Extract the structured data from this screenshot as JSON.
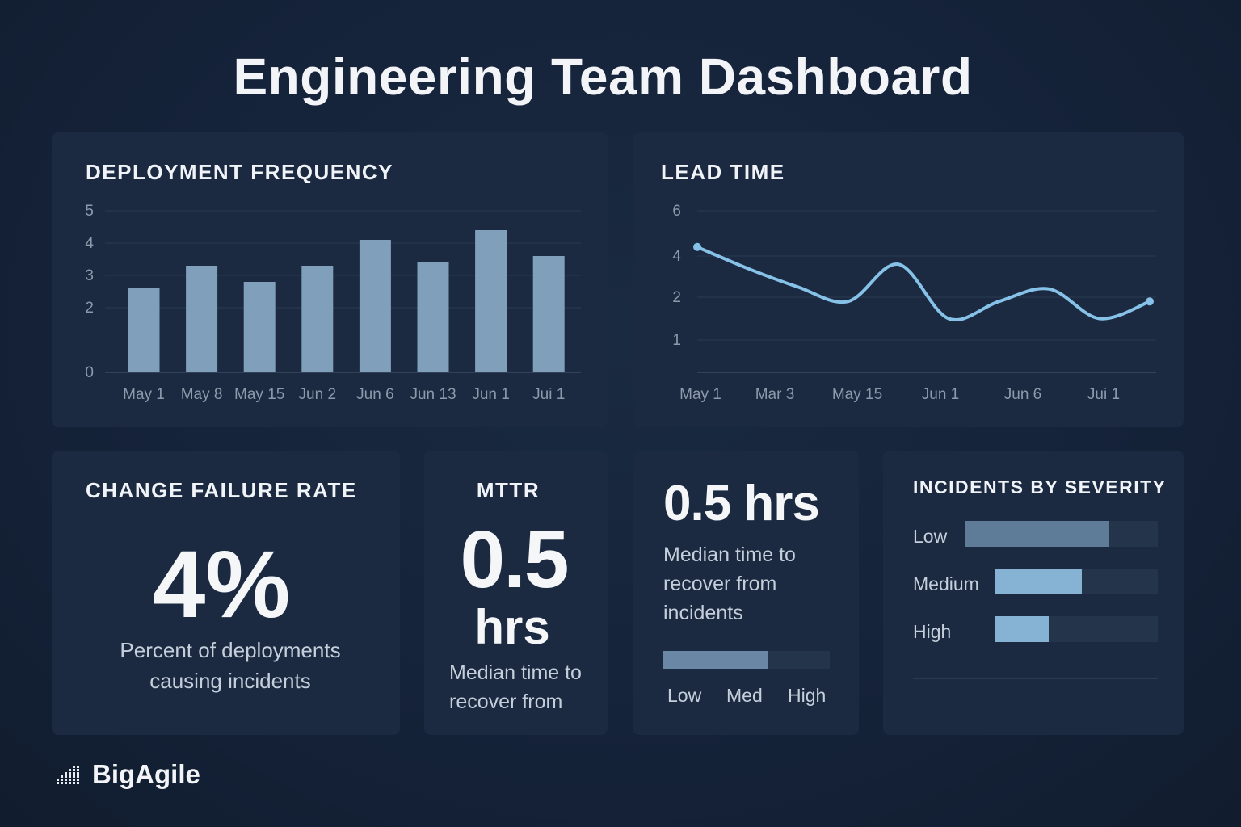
{
  "page": {
    "title": "Engineering Team Dashboard"
  },
  "colors": {
    "background": "#15233a",
    "card": "#1b2a40",
    "bar": "#7f9fba",
    "line": "#86c1e8",
    "severity_low": "#5e7b98",
    "severity_medium": "#86b2d4",
    "severity_high": "#86b2d4",
    "track": "#24344b"
  },
  "deployment_frequency": {
    "title": "DEPLOYMENT FREQUENCY"
  },
  "lead_time": {
    "title": "LEAD TIME"
  },
  "change_failure_rate": {
    "title": "CHANGE FAILURE RATE",
    "value": "4%",
    "desc_line1": "Percent of deployments",
    "desc_line2": "causing incidents"
  },
  "mttr": {
    "title": "MTTR",
    "value": "0.5",
    "unit": "hrs",
    "desc_line1": "Median time to",
    "desc_line2": "recover from"
  },
  "recovery": {
    "value": "0.5 hrs",
    "desc_line1": "Median time to",
    "desc_line2": "recover from",
    "desc_line3": "incidents",
    "scale_low": "Low",
    "scale_med": "Med",
    "scale_high": "High",
    "level": 0.63
  },
  "incidents": {
    "title": "INCIDENTS BY SEVERITY",
    "items": [
      {
        "label": "Low",
        "fraction": 0.75
      },
      {
        "label": "Medium",
        "fraction": 0.53
      },
      {
        "label": "High",
        "fraction": 0.33
      }
    ]
  },
  "brand": {
    "name": "BigAgile"
  },
  "chart_data": [
    {
      "type": "bar",
      "title": "DEPLOYMENT FREQUENCY",
      "categories": [
        "May 1",
        "May 8",
        "May 15",
        "Jun 2",
        "Jun 6",
        "Jun 13",
        "Jun 1",
        "Jui 1"
      ],
      "values": [
        2.6,
        3.3,
        2.8,
        3.3,
        4.1,
        3.4,
        4.4,
        3.6
      ],
      "yticks": [
        0,
        2,
        3,
        4,
        5
      ],
      "ylim": [
        0,
        5
      ],
      "grid": true
    },
    {
      "type": "line",
      "title": "LEAD TIME",
      "xticks": [
        "May 1",
        "Mar 3",
        "May 15",
        "Jun 1",
        "Jun 6",
        "Jui 1"
      ],
      "yticks": [
        1,
        2,
        4,
        6
      ],
      "ylim": [
        0,
        6
      ],
      "series": [
        {
          "values": [
            4.4,
            3.4,
            2.5,
            1.9,
            3.6,
            1.5,
            1.9,
            2.4,
            1.5,
            1.9
          ]
        }
      ],
      "grid": true
    }
  ]
}
